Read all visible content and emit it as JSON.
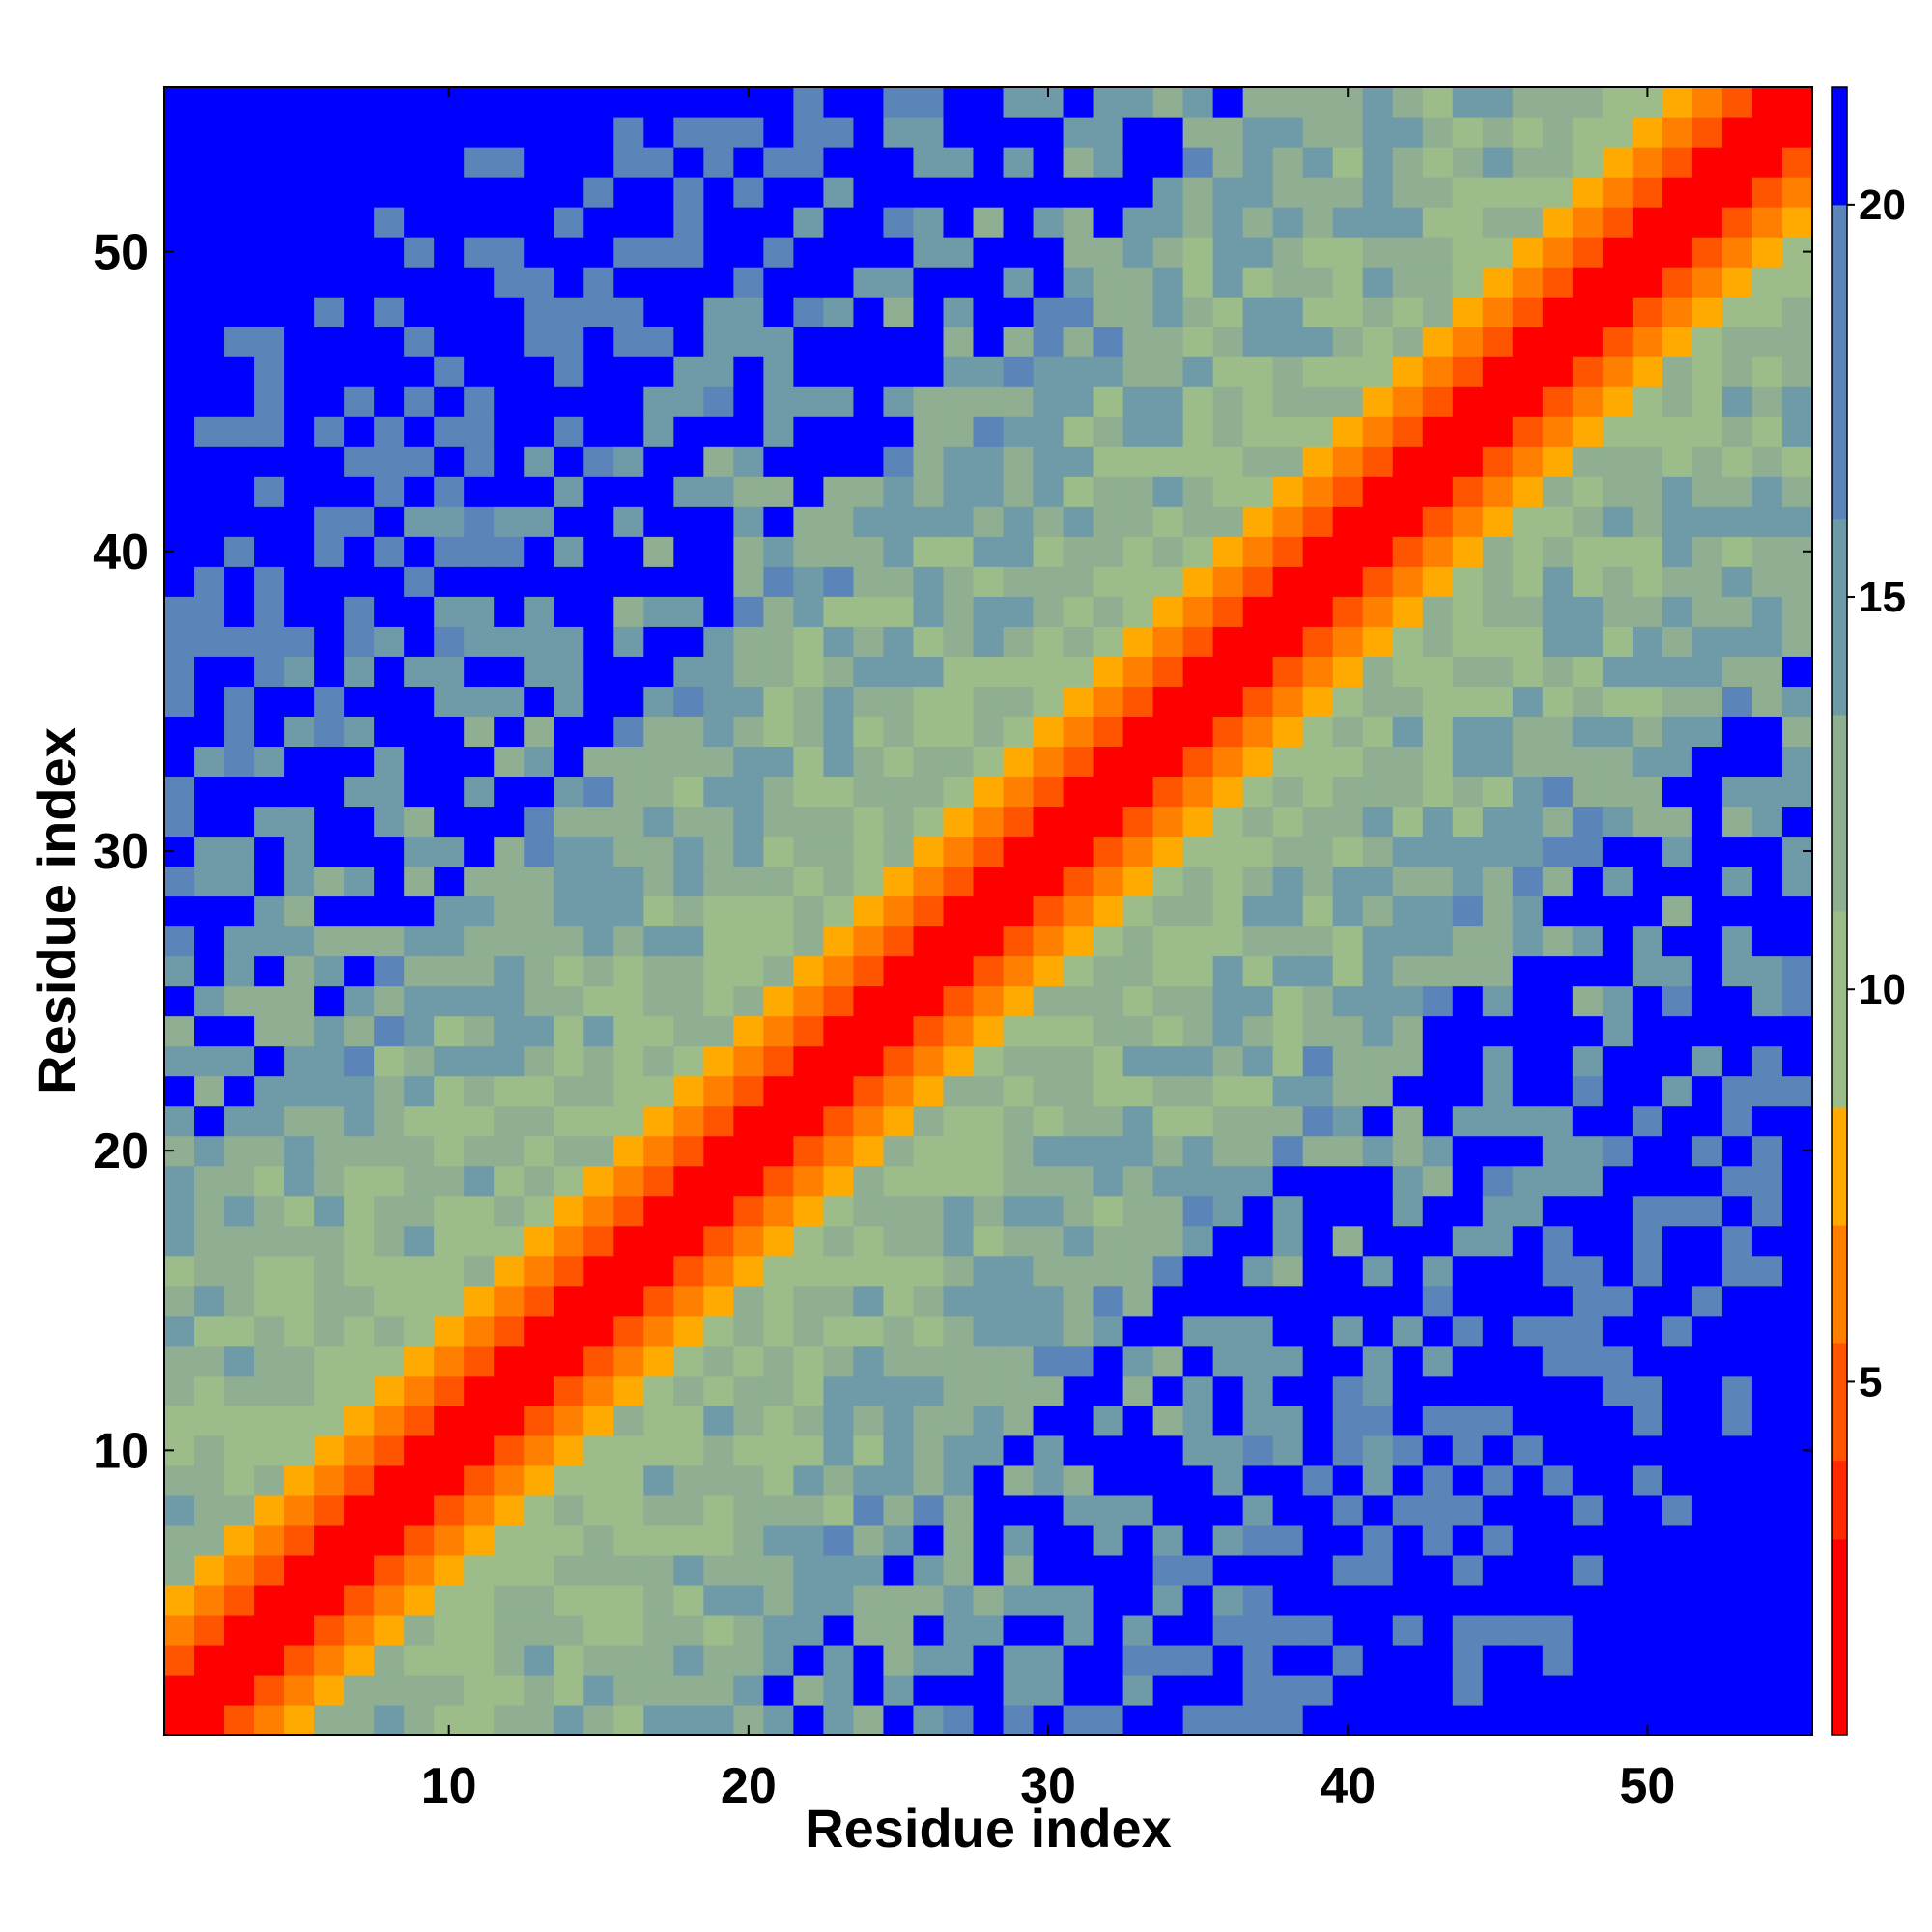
{
  "chart_data": {
    "type": "heatmap",
    "title": "",
    "xlabel": "Residue index",
    "ylabel": "Residue index",
    "n": 55,
    "xlim": [
      0.5,
      55.5
    ],
    "ylim": [
      0.5,
      55.5
    ],
    "x_ticks": [
      10,
      20,
      30,
      40,
      50
    ],
    "y_ticks": [
      10,
      20,
      30,
      40,
      50
    ],
    "x_tick_labels": [
      "10",
      "20",
      "30",
      "40",
      "50"
    ],
    "y_tick_labels": [
      "10",
      "20",
      "30",
      "40",
      "50"
    ],
    "matrix_description": "symmetric residue distance matrix; diagonal band of small values",
    "distance_bands": [
      {
        "offset": 0,
        "value": 2
      },
      {
        "offset": 1,
        "value": 2
      },
      {
        "offset": 2,
        "value": 4
      },
      {
        "offset": 3,
        "value": 6
      },
      {
        "offset": 4,
        "value": 8
      }
    ],
    "colorbar": {
      "range": [
        0.5,
        21.5
      ],
      "ticks": [
        5,
        10,
        15,
        20
      ],
      "tick_labels": [
        "5",
        "10",
        "15",
        "20"
      ],
      "colors": [
        "#ff0000",
        "#ff2a00",
        "#ff5500",
        "#ff8000",
        "#ffaa00",
        "#9cbd8a",
        "#8fae92",
        "#6f9aa8",
        "#5b85b8",
        "#0000ff"
      ],
      "bounds": [
        0.5,
        3.0,
        4.0,
        5.5,
        7.0,
        8.5,
        11.0,
        13.5,
        16.0,
        20.0,
        21.5
      ]
    },
    "grid": false,
    "legend": "colorbar-right"
  }
}
